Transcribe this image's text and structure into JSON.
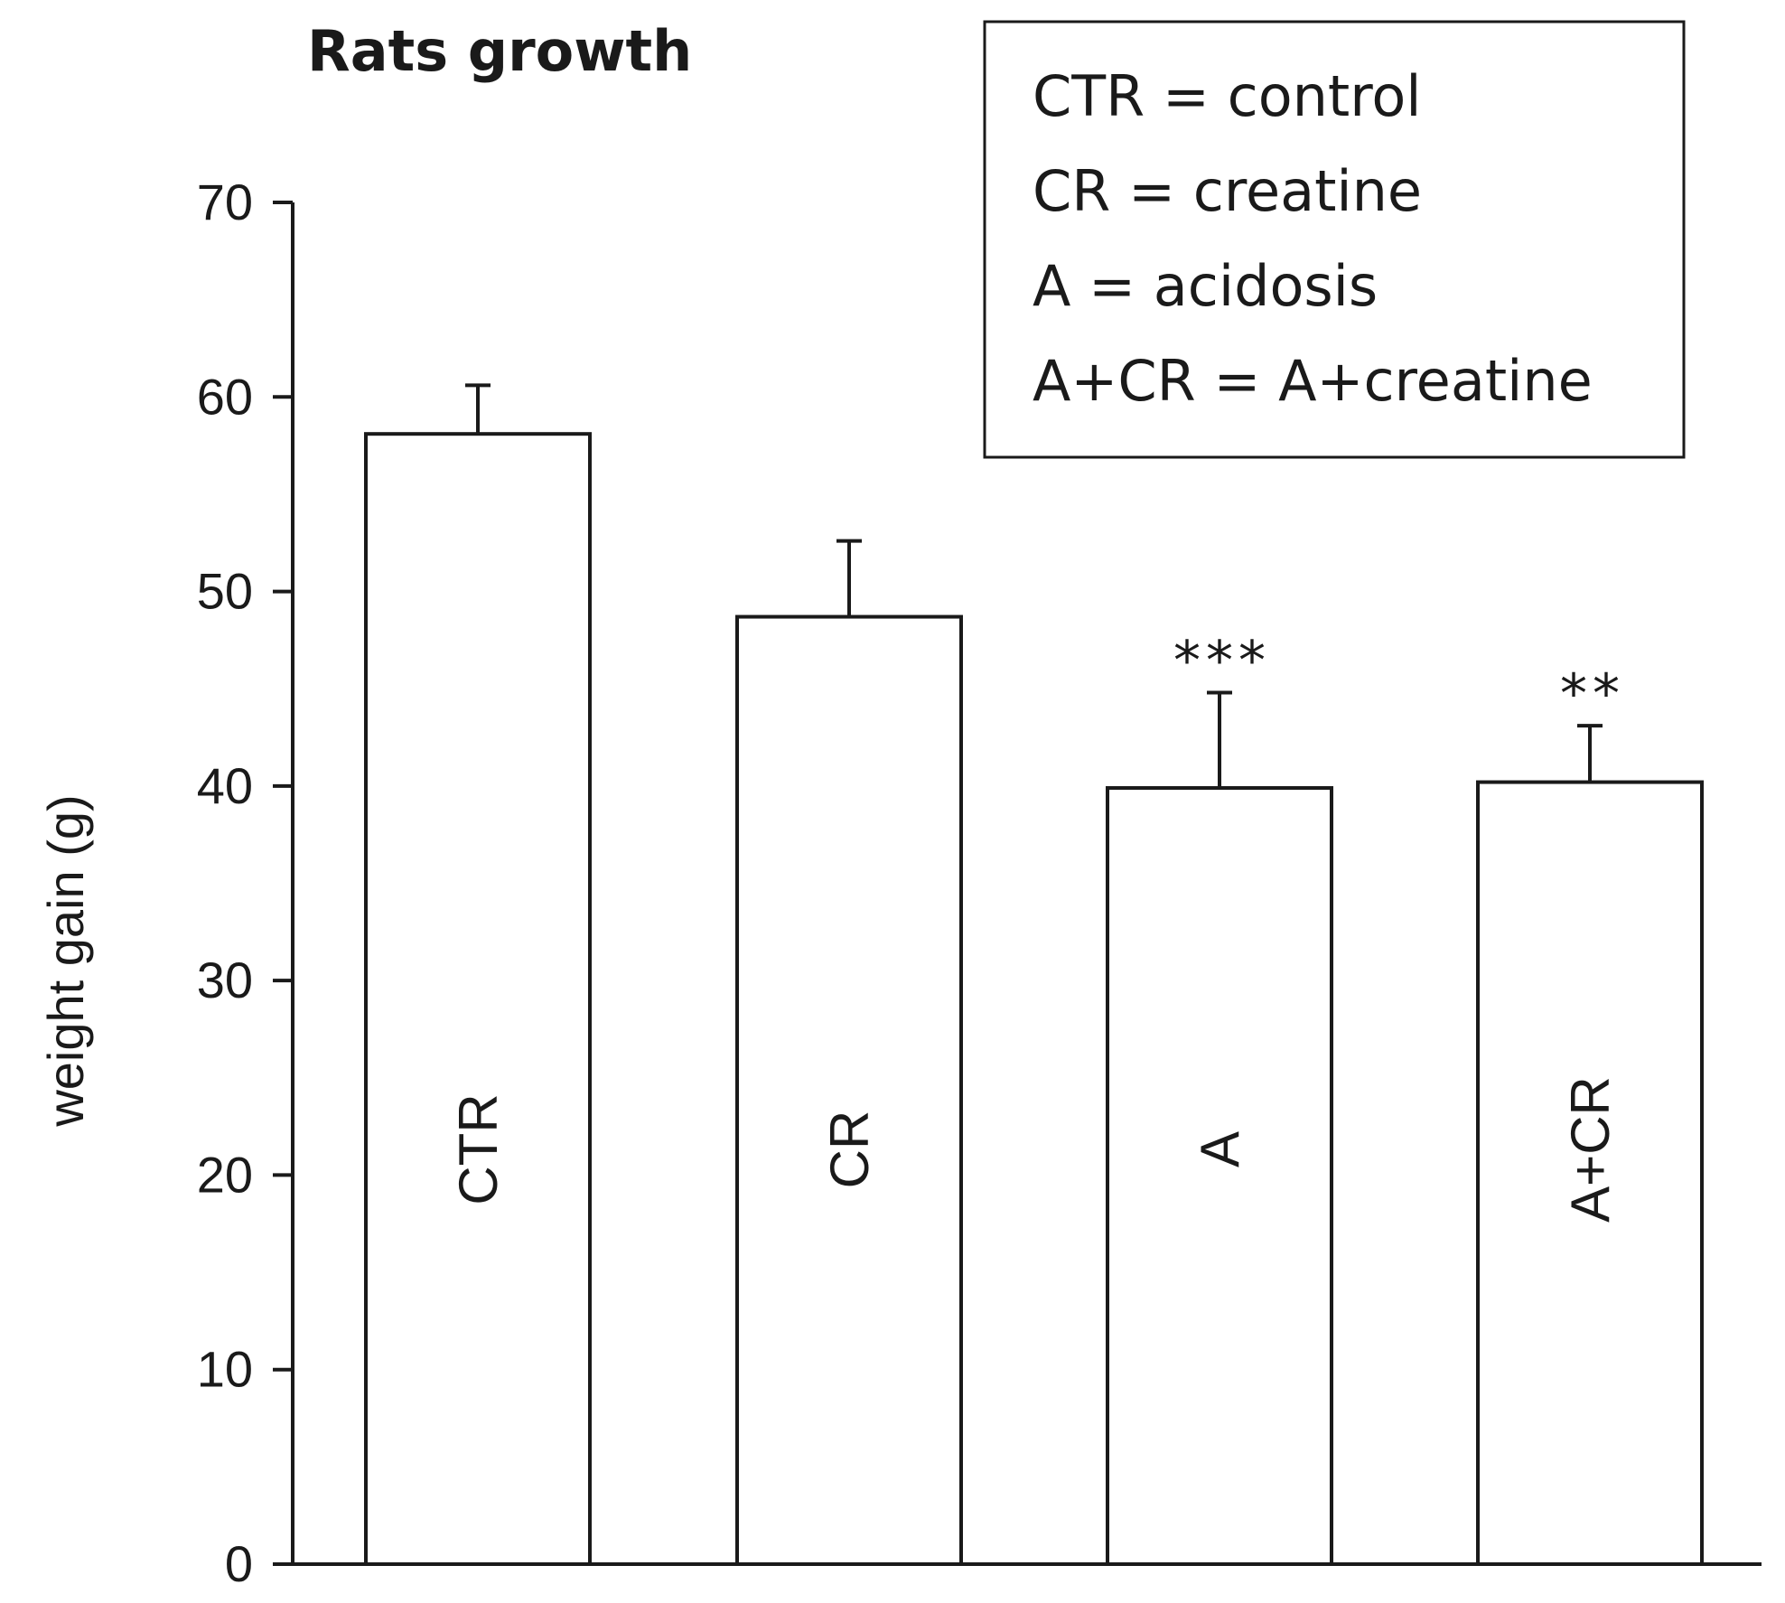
{
  "chart_data": {
    "type": "bar",
    "title": "Rats growth",
    "xlabel": "",
    "ylabel": "weight gain (g)",
    "ylim": [
      0,
      70
    ],
    "yticks": [
      0,
      10,
      20,
      30,
      40,
      50,
      60,
      70
    ],
    "categories": [
      "CTR",
      "CR",
      "A",
      "A+CR"
    ],
    "values": [
      58.1,
      48.7,
      39.9,
      40.2
    ],
    "errors": [
      2.5,
      3.9,
      4.9,
      2.9
    ],
    "significance": [
      "",
      "",
      "***",
      "**"
    ],
    "bar_fill": "#ffffff",
    "bar_stroke": "#1a1a1a",
    "legend": {
      "placement": "top-right",
      "entries": [
        "CTR = control",
        "CR = creatine",
        "A = acidosis",
        "A+CR = A+creatine"
      ]
    }
  }
}
